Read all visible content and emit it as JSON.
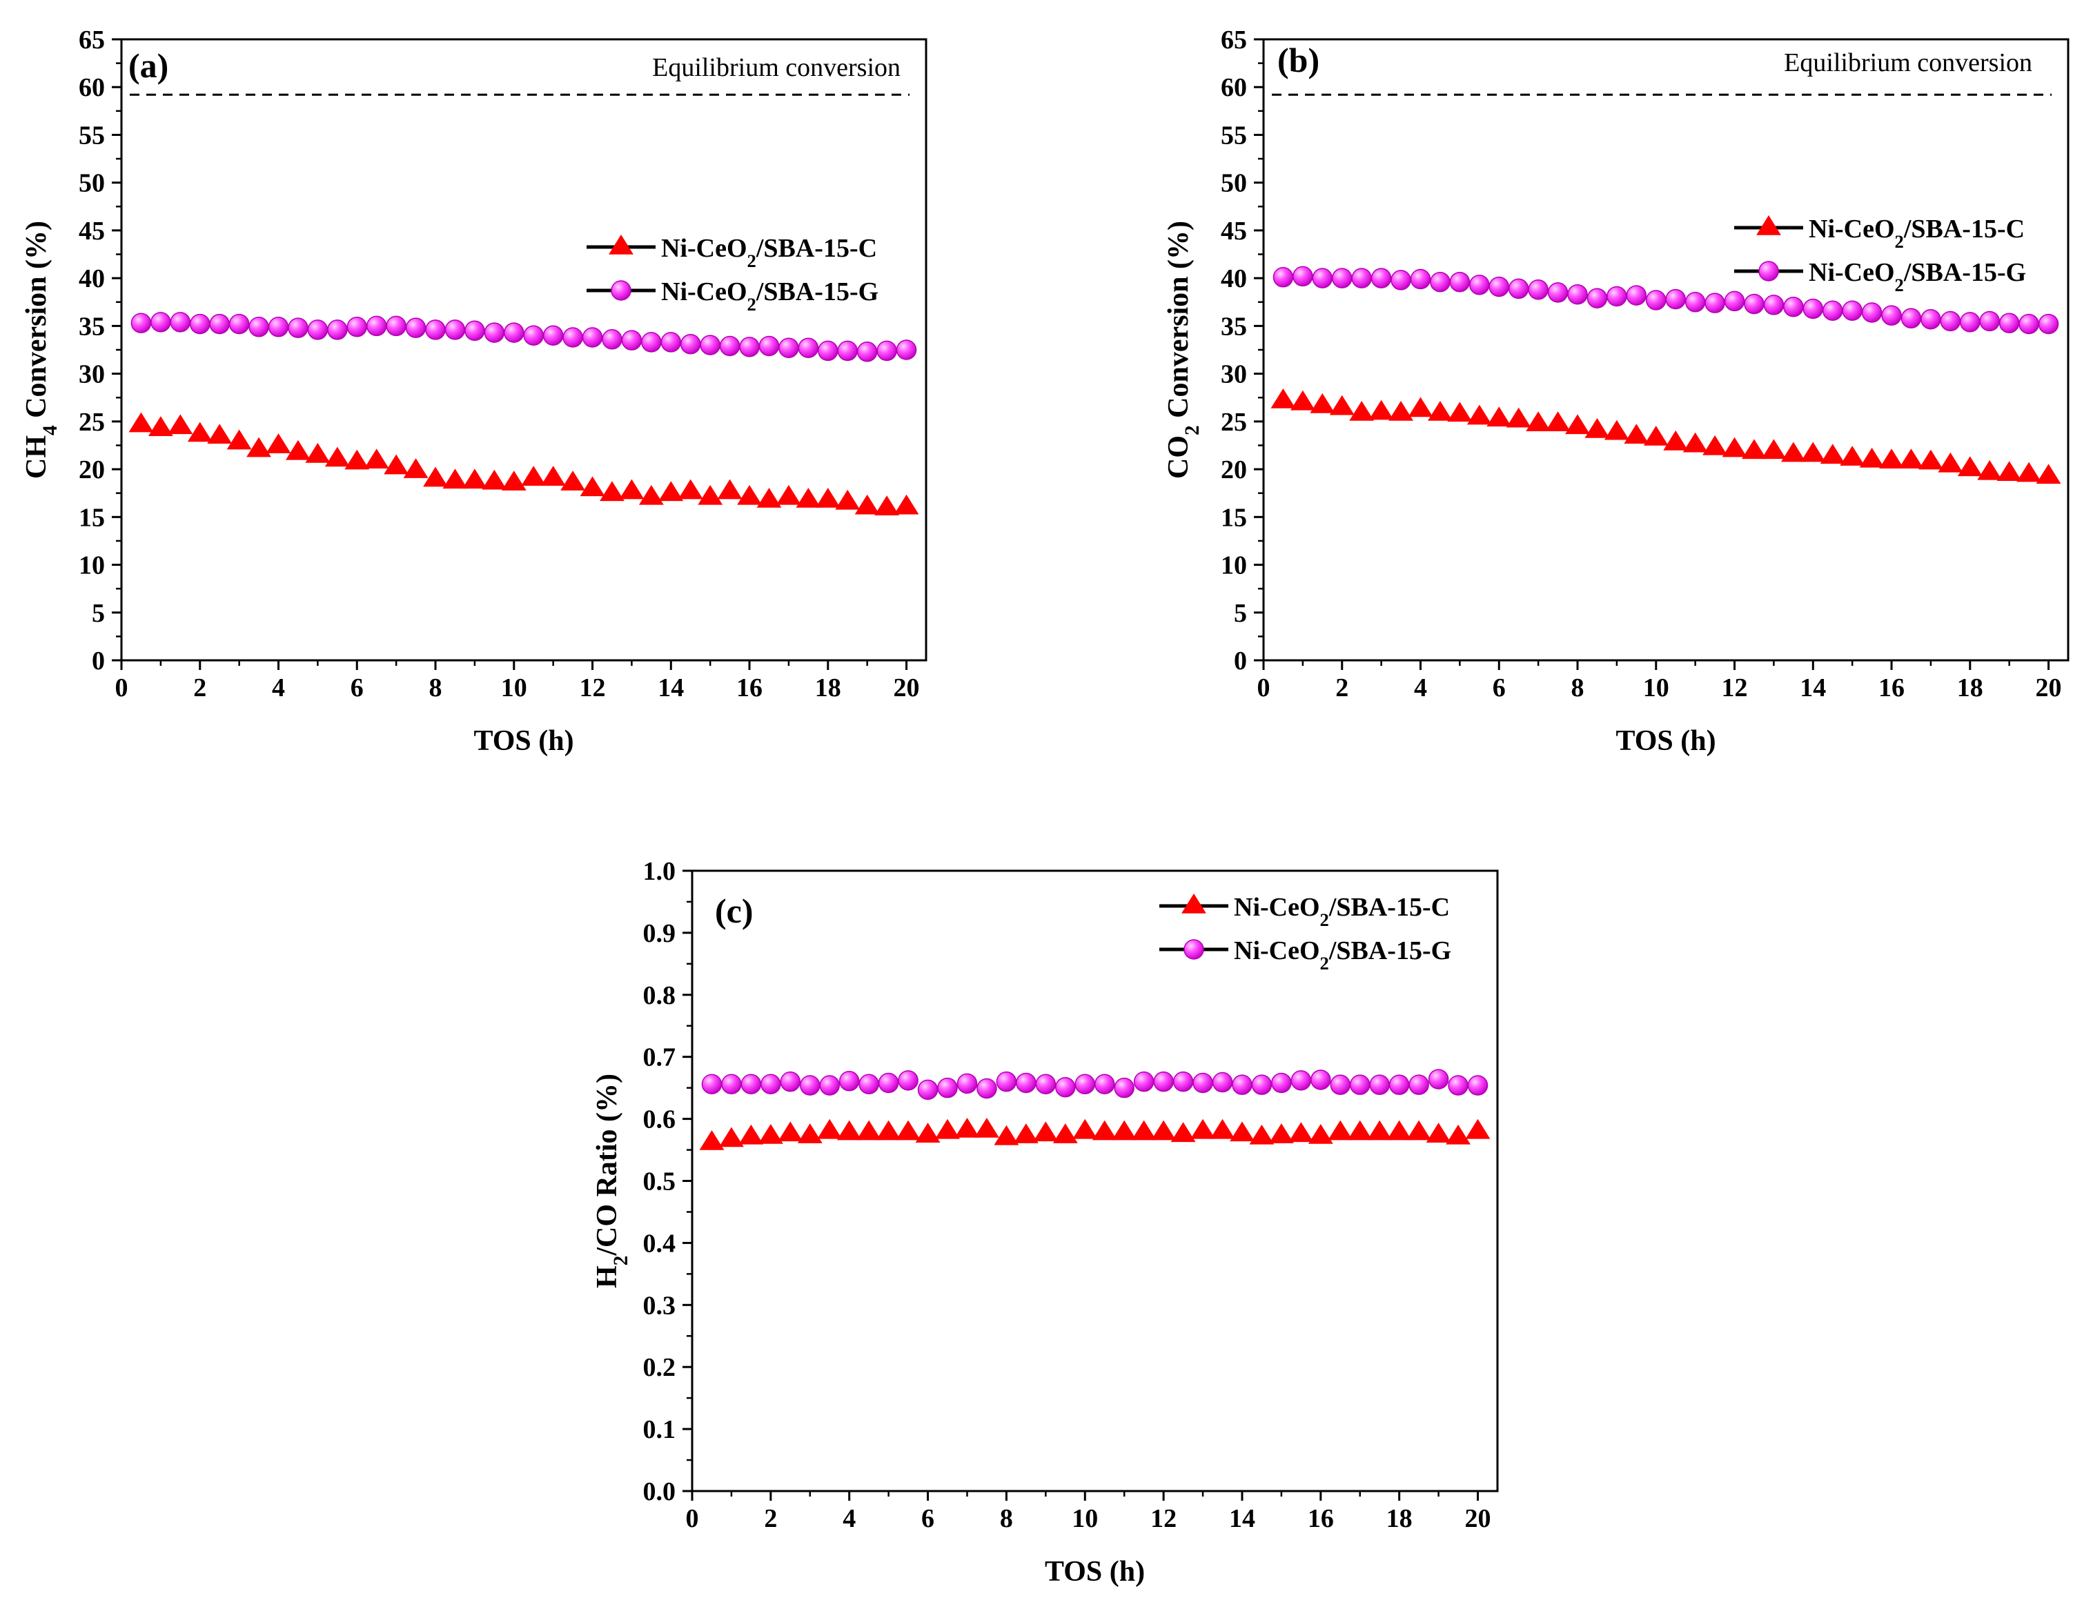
{
  "chart_data": [
    {
      "type": "scatter",
      "panel": "(a)",
      "xlabel": "TOS (h)",
      "ylabel": {
        "pre": "CH",
        "sub": "4",
        "post": " Conversion (%)"
      },
      "xlim": [
        0,
        20.5
      ],
      "ylim": [
        0,
        65
      ],
      "xticks": [
        0,
        2,
        4,
        6,
        8,
        10,
        12,
        14,
        16,
        18,
        20
      ],
      "yticks": [
        0,
        5,
        10,
        15,
        20,
        25,
        30,
        35,
        40,
        45,
        50,
        55,
        60,
        65
      ],
      "yminor_step": 2.5,
      "equilibrium": {
        "label": "Equilibrium conversion",
        "value": 59.2
      },
      "legend_position": "middle-right",
      "x": [
        0.5,
        1,
        1.5,
        2,
        2.5,
        3,
        3.5,
        4,
        4.5,
        5,
        5.5,
        6,
        6.5,
        7,
        7.5,
        8,
        8.5,
        9,
        9.5,
        10,
        10.5,
        11,
        11.5,
        12,
        12.5,
        13,
        13.5,
        14,
        14.5,
        15,
        15.5,
        16,
        16.5,
        17,
        17.5,
        18,
        18.5,
        19,
        19.5,
        20
      ],
      "series": [
        {
          "name": {
            "pre": "Ni-CeO",
            "sub": "2",
            "post": "/SBA-15-C"
          },
          "marker": "triangle",
          "color": "#ff0000",
          "values": [
            24.8,
            24.4,
            24.6,
            23.8,
            23.6,
            23.0,
            22.2,
            22.6,
            21.9,
            21.6,
            21.2,
            20.9,
            21.0,
            20.4,
            20.0,
            19.1,
            18.9,
            18.9,
            18.8,
            18.7,
            19.2,
            19.2,
            18.7,
            18.1,
            17.6,
            17.8,
            17.2,
            17.6,
            17.8,
            17.2,
            17.8,
            17.2,
            16.9,
            17.2,
            16.9,
            16.9,
            16.7,
            16.2,
            16.1,
            16.2
          ]
        },
        {
          "name": {
            "pre": "Ni-CeO",
            "sub": "2",
            "post": "/SBA-15-G"
          },
          "marker": "circle",
          "color": "#ff00ff",
          "values": [
            35.3,
            35.4,
            35.4,
            35.2,
            35.2,
            35.2,
            34.9,
            34.9,
            34.8,
            34.6,
            34.6,
            34.9,
            35.0,
            35.0,
            34.8,
            34.6,
            34.6,
            34.5,
            34.3,
            34.3,
            34.0,
            34.0,
            33.8,
            33.8,
            33.6,
            33.5,
            33.3,
            33.3,
            33.1,
            33.0,
            32.9,
            32.8,
            32.9,
            32.7,
            32.7,
            32.4,
            32.4,
            32.3,
            32.4,
            32.5
          ]
        }
      ]
    },
    {
      "type": "scatter",
      "panel": "(b)",
      "xlabel": "TOS (h)",
      "ylabel": {
        "pre": "CO",
        "sub": "2",
        "post": " Conversion (%)"
      },
      "xlim": [
        0,
        20.5
      ],
      "ylim": [
        0,
        65
      ],
      "xticks": [
        0,
        2,
        4,
        6,
        8,
        10,
        12,
        14,
        16,
        18,
        20
      ],
      "yticks": [
        0,
        5,
        10,
        15,
        20,
        25,
        30,
        35,
        40,
        45,
        50,
        55,
        60,
        65
      ],
      "yminor_step": 2.5,
      "equilibrium": {
        "label": "Equilibrium conversion",
        "value": 59.2
      },
      "legend_position": "middle-right",
      "x": [
        0.5,
        1,
        1.5,
        2,
        2.5,
        3,
        3.5,
        4,
        4.5,
        5,
        5.5,
        6,
        6.5,
        7,
        7.5,
        8,
        8.5,
        9,
        9.5,
        10,
        10.5,
        11,
        11.5,
        12,
        12.5,
        13,
        13.5,
        14,
        14.5,
        15,
        15.5,
        16,
        16.5,
        17,
        17.5,
        18,
        18.5,
        19,
        19.5,
        20
      ],
      "series": [
        {
          "name": {
            "pre": "Ni-CeO",
            "sub": "2",
            "post": "/SBA-15-C"
          },
          "marker": "triangle",
          "color": "#ff0000",
          "values": [
            27.3,
            27.1,
            26.8,
            26.6,
            26.0,
            26.1,
            26.0,
            26.4,
            26.0,
            25.9,
            25.6,
            25.4,
            25.3,
            24.9,
            24.9,
            24.6,
            24.2,
            24.0,
            23.6,
            23.4,
            22.9,
            22.7,
            22.4,
            22.2,
            22.0,
            22.0,
            21.7,
            21.7,
            21.5,
            21.3,
            21.1,
            21.0,
            21.0,
            20.9,
            20.6,
            20.2,
            19.8,
            19.7,
            19.6,
            19.4
          ]
        },
        {
          "name": {
            "pre": "Ni-CeO",
            "sub": "2",
            "post": "/SBA-15-G"
          },
          "marker": "circle",
          "color": "#ff00ff",
          "values": [
            40.1,
            40.2,
            40.0,
            40.0,
            40.0,
            40.0,
            39.8,
            39.9,
            39.6,
            39.6,
            39.3,
            39.1,
            38.9,
            38.8,
            38.5,
            38.3,
            37.9,
            38.1,
            38.2,
            37.7,
            37.8,
            37.5,
            37.4,
            37.6,
            37.3,
            37.2,
            37.0,
            36.8,
            36.6,
            36.6,
            36.4,
            36.1,
            35.8,
            35.7,
            35.5,
            35.4,
            35.5,
            35.3,
            35.2,
            35.2
          ]
        }
      ]
    },
    {
      "type": "scatter",
      "panel": "(c)",
      "xlabel": "TOS (h)",
      "ylabel": {
        "pre": "H",
        "sub": "2",
        "post": "/CO Ratio (%)"
      },
      "xlim": [
        0,
        20.5
      ],
      "ylim": [
        0,
        1.0
      ],
      "xticks": [
        0,
        2,
        4,
        6,
        8,
        10,
        12,
        14,
        16,
        18,
        20
      ],
      "yticks": [
        0.0,
        0.1,
        0.2,
        0.3,
        0.4,
        0.5,
        0.6,
        0.7,
        0.8,
        0.9,
        1.0
      ],
      "ytick_labels": [
        "0.0",
        "0.1",
        "0.2",
        "0.3",
        "0.4",
        "0.5",
        "0.6",
        "0.7",
        "0.8",
        "0.9",
        "1.0"
      ],
      "yminor_step": 0.05,
      "legend_position": "top-right",
      "x": [
        0.5,
        1,
        1.5,
        2,
        2.5,
        3,
        3.5,
        4,
        4.5,
        5,
        5.5,
        6,
        6.5,
        7,
        7.5,
        8,
        8.5,
        9,
        9.5,
        10,
        10.5,
        11,
        11.5,
        12,
        12.5,
        13,
        13.5,
        14,
        14.5,
        15,
        15.5,
        16,
        16.5,
        17,
        17.5,
        18,
        18.5,
        19,
        19.5,
        20
      ],
      "series": [
        {
          "name": {
            "pre": "Ni-CeO",
            "sub": "2",
            "post": "/SBA-15-C"
          },
          "marker": "triangle",
          "color": "#ff0000",
          "values": [
            0.564,
            0.569,
            0.573,
            0.574,
            0.578,
            0.575,
            0.582,
            0.58,
            0.58,
            0.58,
            0.58,
            0.576,
            0.582,
            0.584,
            0.584,
            0.572,
            0.575,
            0.578,
            0.575,
            0.582,
            0.58,
            0.58,
            0.58,
            0.58,
            0.577,
            0.582,
            0.582,
            0.578,
            0.573,
            0.575,
            0.577,
            0.574,
            0.58,
            0.58,
            0.58,
            0.58,
            0.58,
            0.576,
            0.573,
            0.582
          ]
        },
        {
          "name": {
            "pre": "Ni-CeO",
            "sub": "2",
            "post": "/SBA-15-G"
          },
          "marker": "circle",
          "color": "#ff00ff",
          "values": [
            0.656,
            0.656,
            0.656,
            0.656,
            0.66,
            0.654,
            0.654,
            0.661,
            0.656,
            0.658,
            0.662,
            0.647,
            0.65,
            0.657,
            0.649,
            0.66,
            0.658,
            0.656,
            0.651,
            0.656,
            0.656,
            0.65,
            0.66,
            0.66,
            0.66,
            0.658,
            0.659,
            0.655,
            0.655,
            0.658,
            0.662,
            0.663,
            0.655,
            0.655,
            0.655,
            0.655,
            0.655,
            0.664,
            0.654,
            0.654
          ]
        }
      ]
    }
  ]
}
